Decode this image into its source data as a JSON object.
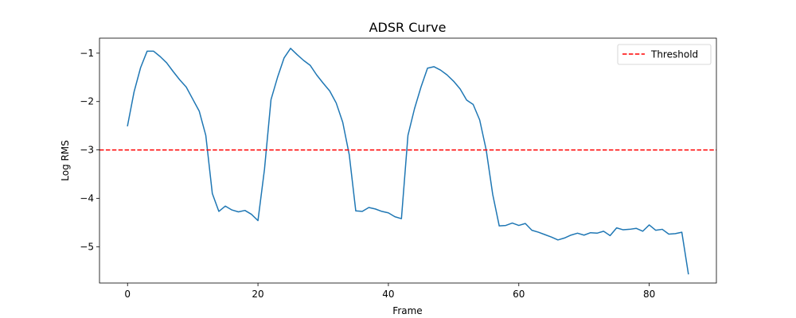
{
  "chart_data": {
    "type": "line",
    "title": "ADSR Curve",
    "xlabel": "Frame",
    "ylabel": "Log RMS",
    "xlim": [
      -4.3,
      90.3
    ],
    "ylim": [
      -5.75,
      -0.69
    ],
    "xticks": [
      0,
      20,
      40,
      60,
      80
    ],
    "yticks": [
      -1,
      -2,
      -3,
      -4,
      -5
    ],
    "ytick_labels": [
      "−1",
      "−2",
      "−3",
      "−4",
      "−5"
    ],
    "grid": false,
    "legend_position": "top-right",
    "series": [
      {
        "name": "",
        "color": "#1f77b4",
        "x": [
          0,
          1,
          2,
          3,
          4,
          5,
          6,
          7,
          8,
          9,
          10,
          11,
          12,
          13,
          14,
          15,
          16,
          17,
          18,
          19,
          20,
          21,
          22,
          23,
          24,
          25,
          26,
          27,
          28,
          29,
          30,
          31,
          32,
          33,
          34,
          35,
          36,
          37,
          38,
          39,
          40,
          41,
          42,
          43,
          44,
          45,
          46,
          47,
          48,
          49,
          50,
          51,
          52,
          53,
          54,
          55,
          56,
          57,
          58,
          59,
          60,
          61,
          62,
          63,
          64,
          65,
          66,
          67,
          68,
          69,
          70,
          71,
          72,
          73,
          74,
          75,
          76,
          77,
          78,
          79,
          80,
          81,
          82,
          83,
          84,
          85,
          86
        ],
        "y": [
          -2.5,
          -1.8,
          -1.3,
          -0.96,
          -0.96,
          -1.07,
          -1.2,
          -1.38,
          -1.55,
          -1.7,
          -1.95,
          -2.2,
          -2.7,
          -3.9,
          -4.27,
          -4.16,
          -4.24,
          -4.28,
          -4.25,
          -4.33,
          -4.46,
          -3.4,
          -1.96,
          -1.5,
          -1.1,
          -0.9,
          -1.03,
          -1.15,
          -1.25,
          -1.45,
          -1.62,
          -1.78,
          -2.03,
          -2.43,
          -3.1,
          -4.26,
          -4.27,
          -4.19,
          -4.22,
          -4.27,
          -4.3,
          -4.38,
          -4.42,
          -2.7,
          -2.15,
          -1.7,
          -1.31,
          -1.28,
          -1.35,
          -1.45,
          -1.58,
          -1.74,
          -1.97,
          -2.06,
          -2.38,
          -3.0,
          -3.92,
          -4.57,
          -4.56,
          -4.51,
          -4.56,
          -4.52,
          -4.66,
          -4.7,
          -4.75,
          -4.8,
          -4.86,
          -4.82,
          -4.76,
          -4.72,
          -4.76,
          -4.71,
          -4.72,
          -4.68,
          -4.77,
          -4.61,
          -4.65,
          -4.64,
          -4.62,
          -4.68,
          -4.55,
          -4.66,
          -4.64,
          -4.74,
          -4.73,
          -4.7,
          -5.56
        ]
      },
      {
        "name": "Threshold",
        "color": "#ff0000",
        "style": "dashed",
        "hline": -3.0
      }
    ]
  }
}
